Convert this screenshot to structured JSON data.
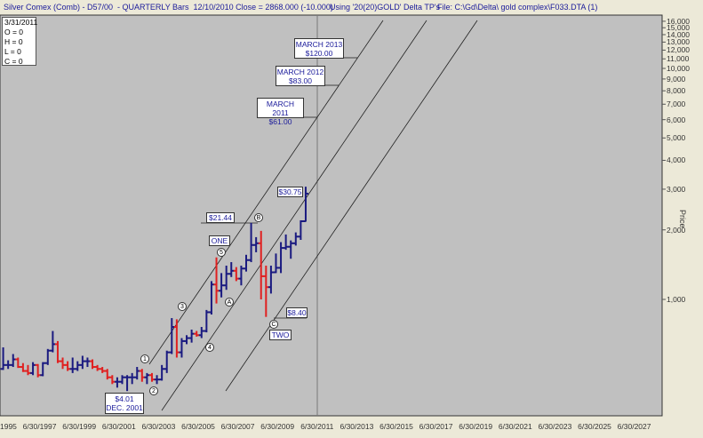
{
  "header": {
    "symbol": "Silver Comex (Comb) - D57/00  - QUARTERLY Bars  12/10/2010 Close = 2868.000 (-10.000)",
    "using": "Using '20(20)GOLD' Delta TP's",
    "file": "File: C:\\Gd\\Delta\\ gold complex\\F033.DTA (1)"
  },
  "legend": {
    "date": "3/31/2011",
    "open": "O = 0",
    "high": "H = 0",
    "low": "L = 0",
    "close": "C = 0"
  },
  "annotations": {
    "march2013": {
      "line1": "MARCH 2013",
      "line2": "$120.00"
    },
    "march2012": {
      "line1": "MARCH 2012",
      "line2": "$83.00"
    },
    "march2011": {
      "line1": "MARCH 2011",
      "line2": "$61.00"
    },
    "price3075": "$30.75",
    "price2144": "$21.44",
    "one": "ONE",
    "two": "TWO",
    "price840": "$8.40",
    "price401": {
      "line1": "$4.01",
      "line2": "DEC. 2001"
    },
    "points": [
      "1",
      "2",
      "3",
      "4",
      "5",
      "A",
      "B",
      "C"
    ]
  },
  "colors": {
    "up": "#1a1a80",
    "down": "#e02020",
    "plot_bg": "#C0C0C0",
    "text": "#1a1a9a"
  },
  "chart_data": {
    "type": "ohlc",
    "title": "Silver Comex (Comb) - QUARTERLY Bars",
    "ylabel": "Price",
    "yscale": "log",
    "ylim": [
      320,
      16000
    ],
    "xlim": [
      "6/30/1995",
      "6/30/2028"
    ],
    "x_ticks": [
      "6/30/1995",
      "6/30/1997",
      "6/30/1999",
      "6/30/2001",
      "6/30/2003",
      "6/30/2005",
      "6/30/2007",
      "6/30/2009",
      "6/30/2011",
      "6/30/2013",
      "6/30/2015",
      "6/30/2017",
      "6/30/2019",
      "6/30/2021",
      "6/30/2023",
      "6/30/2025",
      "6/30/2027"
    ],
    "y_ticks": [
      "1,000",
      "2,000",
      "3,000",
      "4,000",
      "5,000",
      "6,000",
      "7,000",
      "8,000",
      "9,000",
      "10,000",
      "11,000",
      "12,000",
      "13,000",
      "14,000",
      "15,000",
      "16,000"
    ],
    "first_quarter": "1995Q3",
    "bars_ohlc_cents": [
      [
        500,
        620,
        495,
        520
      ],
      [
        520,
        545,
        500,
        520
      ],
      [
        520,
        580,
        510,
        550
      ],
      [
        550,
        560,
        505,
        510
      ],
      [
        510,
        530,
        485,
        490
      ],
      [
        490,
        520,
        470,
        480
      ],
      [
        480,
        535,
        470,
        520
      ],
      [
        520,
        525,
        460,
        470
      ],
      [
        470,
        535,
        465,
        530
      ],
      [
        530,
        610,
        520,
        600
      ],
      [
        600,
        730,
        590,
        640
      ],
      [
        640,
        660,
        530,
        540
      ],
      [
        540,
        560,
        500,
        520
      ],
      [
        520,
        540,
        490,
        500
      ],
      [
        500,
        560,
        480,
        500
      ],
      [
        500,
        540,
        490,
        520
      ],
      [
        520,
        570,
        500,
        540
      ],
      [
        540,
        560,
        510,
        540
      ],
      [
        540,
        550,
        500,
        510
      ],
      [
        510,
        520,
        490,
        500
      ],
      [
        500,
        510,
        480,
        490
      ],
      [
        490,
        500,
        450,
        460
      ],
      [
        460,
        470,
        430,
        440
      ],
      [
        440,
        460,
        415,
        440
      ],
      [
        440,
        470,
        430,
        460
      ],
      [
        460,
        470,
        401,
        460
      ],
      [
        460,
        480,
        430,
        460
      ],
      [
        460,
        510,
        450,
        490
      ],
      [
        490,
        500,
        440,
        460
      ],
      [
        460,
        480,
        430,
        470
      ],
      [
        470,
        480,
        440,
        450
      ],
      [
        450,
        470,
        430,
        450
      ],
      [
        450,
        520,
        445,
        500
      ],
      [
        500,
        600,
        480,
        590
      ],
      [
        590,
        830,
        580,
        760
      ],
      [
        760,
        820,
        560,
        590
      ],
      [
        590,
        680,
        560,
        660
      ],
      [
        660,
        700,
        640,
        680
      ],
      [
        680,
        740,
        650,
        710
      ],
      [
        710,
        730,
        690,
        700
      ],
      [
        700,
        760,
        680,
        730
      ],
      [
        730,
        900,
        720,
        880
      ],
      [
        880,
        1200,
        860,
        1160
      ],
      [
        1160,
        1520,
        960,
        1090
      ],
      [
        1090,
        1300,
        1020,
        1150
      ],
      [
        1150,
        1400,
        1100,
        1290
      ],
      [
        1290,
        1450,
        1250,
        1330
      ],
      [
        1330,
        1380,
        1200,
        1230
      ],
      [
        1230,
        1400,
        1150,
        1360
      ],
      [
        1360,
        1560,
        1320,
        1480
      ],
      [
        1480,
        2144,
        1450,
        1720
      ],
      [
        1720,
        1860,
        1600,
        1750
      ],
      [
        1750,
        1980,
        1000,
        1260
      ],
      [
        1260,
        1400,
        840,
        1130
      ],
      [
        1130,
        1400,
        1060,
        1310
      ],
      [
        1310,
        1580,
        1300,
        1370
      ],
      [
        1370,
        1770,
        1300,
        1670
      ],
      [
        1670,
        1910,
        1640,
        1690
      ],
      [
        1690,
        1800,
        1500,
        1750
      ],
      [
        1750,
        1950,
        1710,
        1870
      ],
      [
        1870,
        2200,
        1810,
        2180
      ],
      [
        2180,
        3075,
        2170,
        2870
      ]
    ],
    "channel_lines": 3
  }
}
